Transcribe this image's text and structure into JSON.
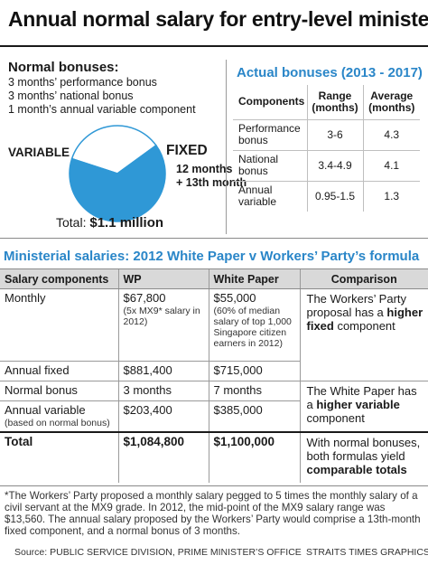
{
  "title": "Annual normal salary for entry-level minister",
  "normal_bonuses": {
    "heading": "Normal bonuses:",
    "items": [
      "3 months’ performance bonus",
      "3 months’ national bonus",
      "1 month’s annual variable component"
    ]
  },
  "pie": {
    "variable_label": "VARIABLE",
    "fixed_label": "FIXED",
    "fixed_sub": [
      "12 months",
      "+ 13th month"
    ],
    "total_prefix": "Total:",
    "total_value": "$1.1 million",
    "colors": {
      "variable": "#ffffff",
      "fixed": "#2f98d6",
      "outline": "#2f98d6"
    }
  },
  "actual_bonuses": {
    "title": "Actual bonuses (2013 - 2017)",
    "headers": [
      "Components",
      "Range (months)",
      "Average (months)"
    ],
    "rows": [
      {
        "component": "Performance bonus",
        "range": "3-6",
        "average": "4.3"
      },
      {
        "component": "National bonus",
        "range": "3.4-4.9",
        "average": "4.1"
      },
      {
        "component": "Annual variable",
        "range": "0.95-1.5",
        "average": "1.3"
      }
    ]
  },
  "ministerial": {
    "title": "Ministerial salaries: 2012 White Paper v Workers’ Party’s formula",
    "headers": [
      "Salary components",
      "WP",
      "White Paper",
      "Comparison"
    ],
    "rows": [
      {
        "component": "Monthly",
        "wp": "$67,800",
        "wp_note": "(5x MX9* salary in 2012)",
        "whitepaper": "$55,000",
        "whitepaper_note": "(60% of median salary of top 1,000 Singapore citizen earners in 2012)"
      },
      {
        "component": "Annual fixed",
        "wp": "$881,400",
        "whitepaper": "$715,000"
      },
      {
        "component": "Normal bonus",
        "wp": "3 months",
        "whitepaper": "7 months"
      },
      {
        "component": "Annual variable",
        "component_note": "(based on normal bonus)",
        "wp": "$203,400",
        "whitepaper": "$385,000"
      },
      {
        "component": "Total",
        "wp": "$1,084,800",
        "whitepaper": "$1,100,000"
      }
    ],
    "comparisons": [
      {
        "pre": "The Workers’ Party proposal has a ",
        "bold": "higher fixed",
        "post": " component"
      },
      {
        "pre": "The White Paper has a ",
        "bold": "higher variable",
        "post": " component"
      },
      {
        "pre": "With normal bonuses, both formulas yield ",
        "bold": "comparable totals",
        "post": ""
      }
    ]
  },
  "footnote": "*The Workers’ Party proposed a monthly salary pegged to 5 times the monthly salary of a civil servant at the MX9 grade. In 2012, the mid-point of the MX9 salary range was $13,560. The annual salary proposed by the Workers’ Party would comprise a 13th-month fixed component, and a normal bonus of 3 months.",
  "source": "Source: PUBLIC SERVICE DIVISION, PRIME MINISTER’S OFFICE",
  "credit": "STRAITS TIMES GRAPHICS",
  "chart_data": {
    "type": "pie",
    "title": "Annual normal salary for entry-level minister",
    "categories": [
      "VARIABLE",
      "FIXED"
    ],
    "values": [
      7,
      13
    ],
    "unit": "months",
    "legend": "direct labels"
  }
}
